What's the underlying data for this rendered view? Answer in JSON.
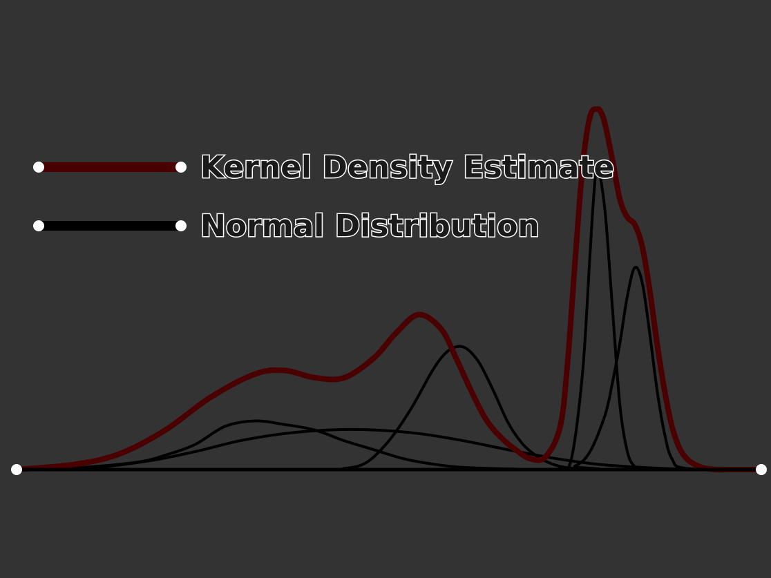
{
  "chart_data": {
    "type": "line",
    "title": "",
    "xlabel": "",
    "ylabel": "",
    "xlim": [
      0,
      100
    ],
    "ylim": [
      0,
      100
    ],
    "grid": false,
    "legend": {
      "placement": "top-left",
      "entries": [
        {
          "label": "Kernel Density Estimate",
          "color": "#4a0000"
        },
        {
          "label": "Normal Distribution",
          "color": "#000000"
        }
      ]
    },
    "series": [
      {
        "name": "Kernel Density Estimate",
        "color": "#4a0000",
        "x": [
          0,
          8,
          14,
          20,
          26,
          32,
          36,
          40,
          44,
          48,
          51,
          54,
          57,
          59,
          61,
          63,
          65,
          67,
          69,
          71,
          73,
          74,
          75,
          76,
          77,
          78,
          78.5,
          79,
          80,
          81,
          82,
          83,
          84,
          85,
          86,
          87,
          88,
          89,
          90,
          91,
          92,
          93,
          94,
          96,
          98,
          100
        ],
        "y": [
          0,
          1.5,
          4.5,
          11,
          20,
          26.5,
          27.5,
          25.5,
          25.5,
          31,
          38,
          43,
          39,
          31,
          22,
          14,
          9,
          5.5,
          3,
          3.5,
          12,
          30,
          58,
          84,
          98,
          100,
          99,
          96,
          86,
          75,
          70,
          68,
          62,
          50,
          35,
          22,
          12,
          6,
          3,
          1.5,
          0.6,
          0.2,
          0,
          0,
          0,
          0
        ]
      },
      {
        "name": "",
        "color": "#000000",
        "x": [
          0,
          8,
          16,
          20,
          24,
          28,
          32,
          36,
          40,
          44,
          48,
          52,
          56,
          60,
          66,
          72,
          100
        ],
        "y": [
          0,
          0.5,
          2,
          4,
          7,
          12,
          13.5,
          12.5,
          11,
          8,
          5.5,
          3,
          1.5,
          0.6,
          0.2,
          0,
          0
        ]
      },
      {
        "name": "",
        "color": "#000000",
        "x": [
          0,
          10,
          18,
          24,
          30,
          36,
          42,
          48,
          54,
          60,
          66,
          72,
          78,
          84,
          90,
          100
        ],
        "y": [
          0,
          0.5,
          2.5,
          5,
          8,
          10,
          11,
          11,
          10,
          8,
          5.5,
          3.2,
          1.5,
          0.6,
          0.1,
          0
        ]
      },
      {
        "name": "",
        "color": "#000000",
        "x": [
          0,
          40,
          44,
          47,
          50,
          53,
          56,
          58,
          60,
          62,
          64,
          66,
          68,
          70,
          72,
          74,
          76,
          80,
          100
        ],
        "y": [
          0,
          0,
          0.3,
          2,
          8,
          17,
          28,
          33,
          34,
          30,
          22,
          13,
          7,
          3.5,
          1.5,
          0.5,
          0.2,
          0,
          0
        ]
      },
      {
        "name": "",
        "color": "#000000",
        "x": [
          0,
          70,
          73,
          74.5,
          76,
          77,
          77.5,
          78,
          79,
          80,
          81,
          82,
          83,
          84,
          100
        ],
        "y": [
          0,
          0,
          0.5,
          3,
          27,
          60,
          76,
          84,
          72,
          45,
          18,
          5,
          0.8,
          0,
          0
        ]
      },
      {
        "name": "",
        "color": "#000000",
        "x": [
          0,
          72,
          75,
          77,
          79,
          80,
          81,
          82,
          83,
          84,
          85,
          86,
          87,
          88,
          90,
          100
        ],
        "y": [
          0,
          0,
          1,
          5,
          15,
          24,
          35,
          48,
          56,
          52,
          38,
          22,
          10,
          3,
          0.3,
          0
        ]
      }
    ]
  }
}
